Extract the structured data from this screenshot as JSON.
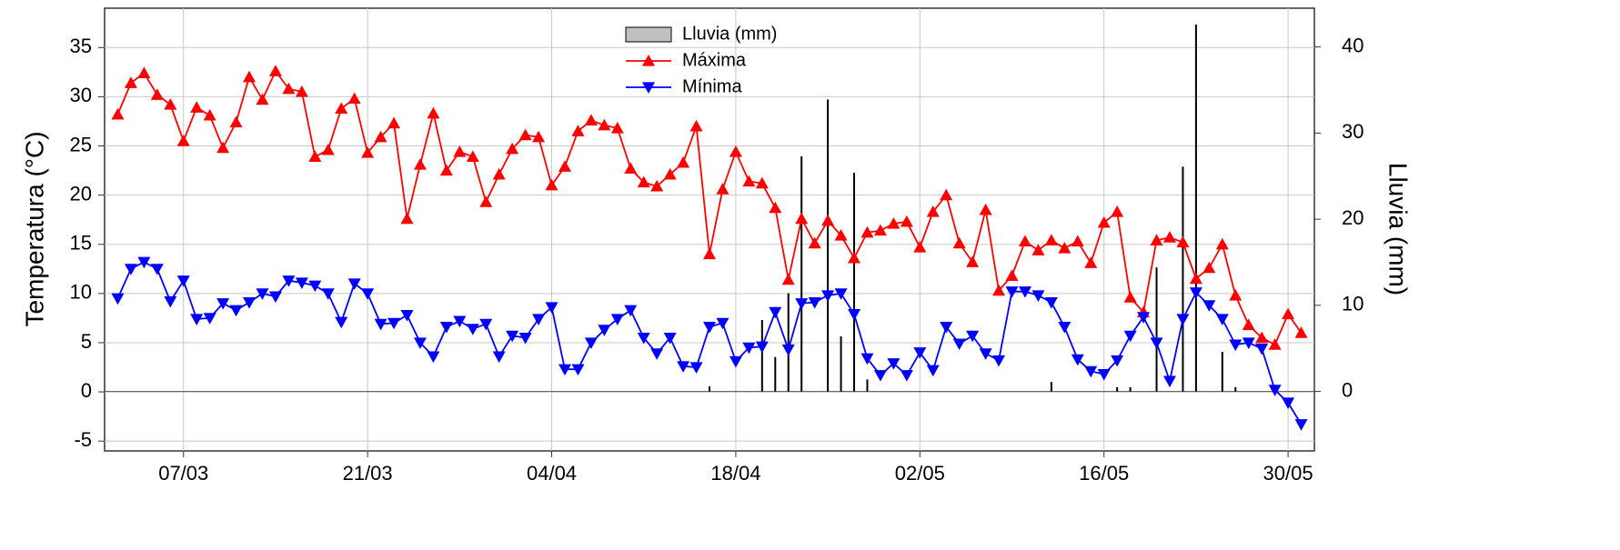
{
  "chart_data": {
    "type": "line",
    "x": [
      "02/03",
      "03/03",
      "04/03",
      "05/03",
      "06/03",
      "07/03",
      "08/03",
      "09/03",
      "10/03",
      "11/03",
      "12/03",
      "13/03",
      "14/03",
      "15/03",
      "16/03",
      "17/03",
      "18/03",
      "19/03",
      "20/03",
      "21/03",
      "22/03",
      "23/03",
      "24/03",
      "25/03",
      "26/03",
      "27/03",
      "28/03",
      "29/03",
      "30/03",
      "31/03",
      "01/04",
      "02/04",
      "03/04",
      "04/04",
      "05/04",
      "06/04",
      "07/04",
      "08/04",
      "09/04",
      "10/04",
      "11/04",
      "12/04",
      "13/04",
      "14/04",
      "15/04",
      "16/04",
      "17/04",
      "18/04",
      "19/04",
      "20/04",
      "21/04",
      "22/04",
      "23/04",
      "24/04",
      "25/04",
      "26/04",
      "27/04",
      "28/04",
      "29/04",
      "30/04",
      "01/05",
      "02/05",
      "03/05",
      "04/05",
      "05/05",
      "06/05",
      "07/05",
      "08/05",
      "09/05",
      "10/05",
      "11/05",
      "12/05",
      "13/05",
      "14/05",
      "15/05",
      "16/05",
      "17/05",
      "18/05",
      "19/05",
      "20/05",
      "21/05",
      "22/05",
      "23/05",
      "24/05",
      "25/05",
      "26/05",
      "27/05",
      "28/05",
      "29/05",
      "30/05",
      "31/05"
    ],
    "series": [
      {
        "name": "Lluvia (mm)",
        "type": "bar",
        "axis": "y2",
        "color": "#000000",
        "legend_color": "#c0c0c0",
        "values": [
          0,
          0,
          0,
          0,
          0,
          0,
          0,
          0,
          0,
          0,
          0,
          0,
          0,
          0,
          0,
          0,
          0,
          0,
          0,
          0,
          0,
          0,
          0,
          0,
          0,
          0,
          0,
          0,
          0,
          0,
          0,
          0,
          0,
          0,
          0,
          0,
          0,
          0,
          0,
          0,
          0,
          0,
          0,
          0,
          0,
          0.6,
          0,
          0,
          0,
          8.3,
          4.0,
          11.4,
          27.3,
          0,
          33.9,
          6.4,
          25.4,
          1.4,
          0,
          0,
          0,
          0,
          0,
          0,
          0,
          0,
          0,
          0,
          0,
          0,
          0,
          1.1,
          0,
          0,
          0,
          0,
          0.5,
          0.5,
          0,
          14.4,
          0,
          26.1,
          42.6,
          0,
          4.6,
          0.5,
          0,
          0,
          0,
          0,
          0
        ]
      },
      {
        "name": "Máxima",
        "type": "line",
        "marker": "triangle-up",
        "color": "#ff0000",
        "values": [
          28.2,
          31.4,
          32.4,
          30.2,
          29.2,
          25.5,
          28.9,
          28.1,
          24.8,
          27.4,
          32.0,
          29.7,
          32.6,
          30.8,
          30.5,
          23.9,
          24.6,
          28.8,
          29.8,
          24.3,
          25.9,
          27.3,
          17.6,
          23.1,
          28.3,
          22.5,
          24.4,
          23.9,
          19.3,
          22.1,
          24.7,
          26.1,
          25.9,
          21.0,
          22.9,
          26.5,
          27.6,
          27.1,
          26.8,
          22.7,
          21.3,
          20.9,
          22.1,
          23.3,
          27.0,
          14.0,
          20.6,
          24.4,
          21.4,
          21.2,
          18.7,
          11.4,
          17.6,
          15.1,
          17.4,
          15.9,
          13.6,
          16.2,
          16.4,
          17.1,
          17.3,
          14.7,
          18.3,
          20.0,
          15.1,
          13.2,
          18.5,
          10.3,
          11.8,
          15.3,
          14.4,
          15.4,
          14.6,
          15.3,
          13.1,
          17.2,
          18.3,
          9.6,
          8.1,
          15.4,
          15.7,
          15.2,
          11.5,
          12.6,
          15.0,
          9.8,
          6.8,
          5.5,
          4.8,
          7.9,
          6.0
        ]
      },
      {
        "name": "Mínima",
        "type": "line",
        "marker": "triangle-down",
        "color": "#0000ff",
        "values": [
          9.5,
          12.5,
          13.2,
          12.5,
          9.2,
          11.3,
          7.4,
          7.5,
          9.0,
          8.3,
          9.1,
          10.0,
          9.7,
          11.3,
          11.1,
          10.8,
          10.0,
          7.1,
          11.0,
          10.0,
          6.9,
          7.0,
          7.8,
          5.0,
          3.6,
          6.6,
          7.2,
          6.4,
          6.9,
          3.6,
          5.7,
          5.5,
          7.4,
          8.6,
          2.3,
          2.3,
          5.0,
          6.3,
          7.4,
          8.3,
          5.5,
          3.9,
          5.5,
          2.6,
          2.5,
          6.6,
          7.0,
          3.1,
          4.5,
          4.6,
          8.1,
          4.3,
          9.0,
          9.1,
          9.8,
          10.0,
          7.9,
          3.4,
          1.7,
          2.9,
          1.7,
          4.0,
          2.2,
          6.6,
          4.9,
          5.7,
          3.9,
          3.2,
          10.2,
          10.2,
          9.8,
          9.1,
          6.6,
          3.3,
          2.1,
          1.8,
          3.2,
          5.7,
          7.6,
          5.0,
          1.1,
          7.4,
          10.1,
          8.8,
          7.4,
          4.8,
          5.0,
          4.4,
          0.2,
          -1.1,
          -3.3
        ]
      }
    ],
    "xlim": [
      "01/03",
      "01/06"
    ],
    "xticks": [
      "07/03",
      "21/03",
      "04/04",
      "18/04",
      "02/05",
      "16/05",
      "30/05"
    ],
    "ylim": [
      -6,
      39
    ],
    "yticks": [
      -5,
      0,
      5,
      10,
      15,
      20,
      25,
      30,
      35
    ],
    "y2lim": [
      -6.9,
      44.5
    ],
    "y2ticks": [
      0,
      10,
      20,
      30,
      40
    ],
    "ylabel": "Temperatura (°C)",
    "y2label": "Lluvia (mm)",
    "grid": true,
    "legend": "top-center"
  }
}
